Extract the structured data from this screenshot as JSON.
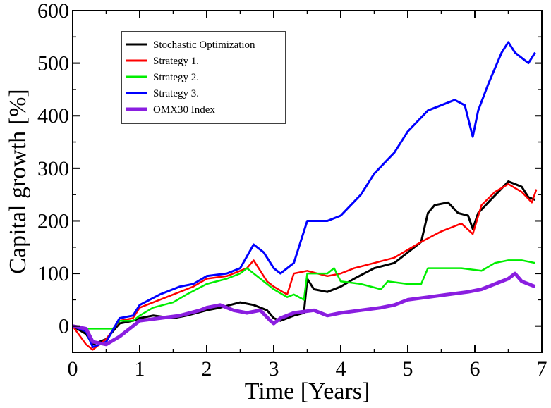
{
  "chart_data": {
    "type": "line",
    "title": "",
    "xlabel": "Time [Years]",
    "ylabel": "Capital growth [%]",
    "xlim": [
      0,
      7
    ],
    "ylim": [
      -50,
      600
    ],
    "xticks": [
      0,
      1,
      2,
      3,
      4,
      5,
      6,
      7
    ],
    "yticks": [
      0,
      100,
      200,
      300,
      400,
      500,
      600
    ],
    "grid": false,
    "legend_position": "top-left",
    "series": [
      {
        "name": "Stochastic Optimization",
        "color": "#000000",
        "stroke_width": 3,
        "x": [
          0,
          0.2,
          0.3,
          0.5,
          0.7,
          0.9,
          1.0,
          1.2,
          1.5,
          1.7,
          2.0,
          2.2,
          2.5,
          2.7,
          2.9,
          3.0,
          3.1,
          3.3,
          3.45,
          3.5,
          3.6,
          3.8,
          4.0,
          4.2,
          4.5,
          4.8,
          5.0,
          5.2,
          5.3,
          5.4,
          5.6,
          5.75,
          5.9,
          5.97,
          6.05,
          6.2,
          6.35,
          6.5,
          6.6,
          6.7,
          6.8,
          6.9
        ],
        "y": [
          0,
          -15,
          -35,
          -25,
          5,
          10,
          15,
          20,
          15,
          20,
          30,
          35,
          45,
          40,
          30,
          15,
          10,
          20,
          25,
          90,
          70,
          65,
          75,
          90,
          110,
          120,
          140,
          160,
          215,
          230,
          235,
          215,
          210,
          185,
          215,
          235,
          255,
          275,
          270,
          265,
          245,
          240
        ]
      },
      {
        "name": "Strategy 1.",
        "color": "#ff0000",
        "stroke_width": 2.5,
        "x": [
          0,
          0.2,
          0.3,
          0.5,
          0.7,
          0.9,
          1.0,
          1.3,
          1.5,
          1.8,
          2.0,
          2.3,
          2.6,
          2.7,
          2.9,
          3.0,
          3.2,
          3.3,
          3.5,
          3.8,
          4.0,
          4.2,
          4.5,
          4.8,
          5.0,
          5.2,
          5.5,
          5.8,
          5.97,
          6.1,
          6.3,
          6.5,
          6.7,
          6.85,
          6.92
        ],
        "y": [
          0,
          -35,
          -45,
          -25,
          10,
          15,
          35,
          50,
          60,
          75,
          90,
          95,
          110,
          125,
          85,
          75,
          60,
          100,
          105,
          95,
          100,
          110,
          120,
          130,
          145,
          160,
          180,
          195,
          175,
          230,
          255,
          270,
          255,
          235,
          260
        ]
      },
      {
        "name": "Strategy 2.",
        "color": "#00ee00",
        "stroke_width": 2.5,
        "x": [
          0,
          0.2,
          0.25,
          0.6,
          0.7,
          0.9,
          1.0,
          1.2,
          1.5,
          1.7,
          2.0,
          2.3,
          2.5,
          2.6,
          2.8,
          3.0,
          3.2,
          3.3,
          3.45,
          3.5,
          3.8,
          3.9,
          4.0,
          4.3,
          4.6,
          4.7,
          5.0,
          5.1,
          5.2,
          5.3,
          5.8,
          6.1,
          6.3,
          6.5,
          6.7,
          6.9
        ],
        "y": [
          0,
          -5,
          -5,
          -5,
          10,
          10,
          20,
          35,
          45,
          60,
          80,
          90,
          100,
          110,
          90,
          70,
          55,
          60,
          50,
          100,
          100,
          110,
          85,
          80,
          70,
          85,
          80,
          80,
          80,
          110,
          110,
          105,
          120,
          125,
          125,
          120
        ]
      },
      {
        "name": "Strategy 3.",
        "color": "#0000ff",
        "stroke_width": 3,
        "x": [
          0,
          0.2,
          0.3,
          0.5,
          0.7,
          0.9,
          1.0,
          1.3,
          1.6,
          1.8,
          2.0,
          2.3,
          2.5,
          2.7,
          2.85,
          3.0,
          3.1,
          3.3,
          3.5,
          3.8,
          4.0,
          4.3,
          4.5,
          4.8,
          5.0,
          5.3,
          5.5,
          5.7,
          5.85,
          5.97,
          6.05,
          6.2,
          6.4,
          6.5,
          6.6,
          6.7,
          6.8,
          6.9
        ],
        "y": [
          0,
          -10,
          -40,
          -30,
          15,
          20,
          40,
          60,
          75,
          80,
          95,
          100,
          110,
          155,
          140,
          110,
          100,
          120,
          200,
          200,
          210,
          250,
          290,
          330,
          370,
          410,
          420,
          430,
          420,
          360,
          410,
          460,
          520,
          540,
          520,
          510,
          500,
          520
        ]
      },
      {
        "name": "OMX30 Index",
        "color": "#8a1ee0",
        "stroke_width": 5,
        "x": [
          0,
          0.2,
          0.3,
          0.5,
          0.7,
          0.9,
          1.0,
          1.3,
          1.6,
          1.9,
          2.0,
          2.2,
          2.4,
          2.6,
          2.8,
          2.95,
          3.0,
          3.1,
          3.3,
          3.6,
          3.8,
          4.0,
          4.3,
          4.6,
          4.8,
          5.0,
          5.3,
          5.6,
          5.9,
          6.1,
          6.3,
          6.5,
          6.6,
          6.7,
          6.8,
          6.9
        ],
        "y": [
          0,
          -5,
          -30,
          -35,
          -20,
          0,
          10,
          15,
          20,
          30,
          35,
          40,
          30,
          25,
          30,
          10,
          5,
          15,
          25,
          30,
          20,
          25,
          30,
          35,
          40,
          50,
          55,
          60,
          65,
          70,
          80,
          90,
          100,
          85,
          80,
          75
        ]
      }
    ]
  }
}
